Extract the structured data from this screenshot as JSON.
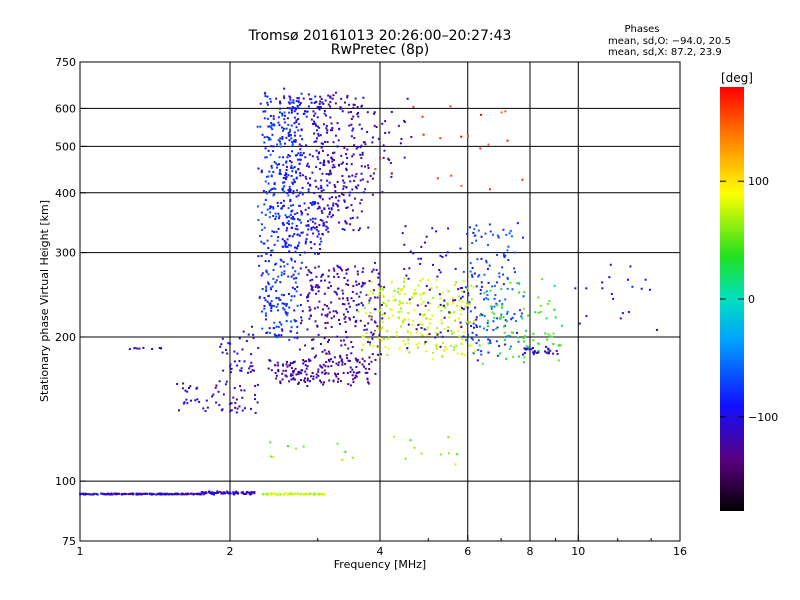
{
  "chart_data": {
    "type": "scatter",
    "title": "Tromsø 20161013 20:26:00–20:27:43",
    "subtitle": "RwPretec (8p)",
    "xlabel": "Frequency [MHz]",
    "ylabel": "Stationary phase Virtual Height [km]",
    "x_scale": "log",
    "y_scale": "log",
    "xlim": [
      1,
      16
    ],
    "ylim": [
      75,
      750
    ],
    "x_ticks": [
      1,
      2,
      4,
      6,
      8,
      10,
      16
    ],
    "x_tick_labels": [
      "1",
      "2",
      "4",
      "6",
      "8",
      "10",
      "16"
    ],
    "y_ticks": [
      75,
      100,
      200,
      300,
      400,
      500,
      600,
      750
    ],
    "y_tick_labels": [
      "75",
      "100",
      "200",
      "300",
      "400",
      "500",
      "600",
      "750"
    ],
    "grid": true,
    "grid_x": [
      2,
      4,
      6,
      8,
      10
    ],
    "grid_y": [
      100,
      200,
      300,
      400,
      500,
      600
    ],
    "phase_stats": {
      "heading": "Phases",
      "line_o": "mean, sd,O: −94.0, 20.5",
      "line_x": "mean, sd,X:  87.2, 23.9"
    },
    "colorbar": {
      "label": "[deg]",
      "range": [
        -180,
        180
      ],
      "ticks": [
        100,
        0,
        -100
      ],
      "tick_labels": [
        "100",
        "0",
        "−100"
      ]
    },
    "traces": [
      {
        "from_f": 1.0,
        "to_f": 1.75,
        "from_h": 94,
        "to_h": 94,
        "phase": -110,
        "count": 160,
        "jitter": 0.005
      },
      {
        "from_f": 1.75,
        "to_f": 2.25,
        "from_h": 94,
        "to_h": 95,
        "phase": -108,
        "count": 80,
        "jitter": 0.006
      },
      {
        "from_f": 2.33,
        "to_f": 3.1,
        "from_h": 94,
        "to_h": 94,
        "phase": 75,
        "count": 60,
        "jitter": 0.006
      },
      {
        "from_f": 1.55,
        "to_f": 2.1,
        "from_h": 140,
        "to_h": 160,
        "phase": -112,
        "count": 40,
        "jitter": 0.02
      },
      {
        "from_f": 1.9,
        "to_f": 2.3,
        "from_h": 140,
        "to_h": 210,
        "phase": -108,
        "count": 60,
        "jitter": 0.025
      },
      {
        "from_f": 2.3,
        "to_f": 2.75,
        "from_h": 200,
        "to_h": 640,
        "phase": -80,
        "count": 400,
        "jitter": 0.04
      },
      {
        "from_f": 2.55,
        "to_f": 3.05,
        "from_h": 300,
        "to_h": 650,
        "phase": -95,
        "count": 240,
        "jitter": 0.045
      },
      {
        "from_f": 3.0,
        "to_f": 3.7,
        "from_h": 330,
        "to_h": 640,
        "phase": -115,
        "count": 240,
        "jitter": 0.05
      },
      {
        "from_f": 3.7,
        "to_f": 4.5,
        "from_h": 400,
        "to_h": 640,
        "phase": -120,
        "count": 40,
        "jitter": 0.06
      },
      {
        "from_f": 2.4,
        "to_f": 3.9,
        "from_h": 160,
        "to_h": 180,
        "phase": -125,
        "count": 160,
        "jitter": 0.03
      },
      {
        "from_f": 2.8,
        "to_f": 4.0,
        "from_h": 180,
        "to_h": 280,
        "phase": -118,
        "count": 240,
        "jitter": 0.06
      },
      {
        "from_f": 3.7,
        "to_f": 6.2,
        "from_h": 185,
        "to_h": 260,
        "phase": 78,
        "count": 240,
        "jitter": 0.06
      },
      {
        "from_f": 4.5,
        "to_f": 6.5,
        "from_h": 190,
        "to_h": 340,
        "phase": -110,
        "count": 80,
        "jitter": 0.08
      },
      {
        "from_f": 6.0,
        "to_f": 7.6,
        "from_h": 180,
        "to_h": 340,
        "phase": -70,
        "count": 140,
        "jitter": 0.07
      },
      {
        "from_f": 6.3,
        "to_f": 9.2,
        "from_h": 180,
        "to_h": 260,
        "phase": 40,
        "count": 80,
        "jitter": 0.07
      },
      {
        "from_f": 7.6,
        "to_f": 9.2,
        "from_h": 185,
        "to_h": 190,
        "phase": -112,
        "count": 30,
        "jitter": 0.02
      },
      {
        "from_f": 10.0,
        "to_f": 14.5,
        "from_h": 200,
        "to_h": 290,
        "phase": -100,
        "count": 20,
        "jitter": 0.05
      },
      {
        "from_f": 1.25,
        "to_f": 1.55,
        "from_h": 189,
        "to_h": 189,
        "phase": -110,
        "count": 10,
        "jitter": 0.01
      },
      {
        "from_f": 2.3,
        "to_f": 6.0,
        "from_h": 110,
        "to_h": 125,
        "phase": 60,
        "count": 20,
        "jitter": 0.06
      },
      {
        "from_f": 4.0,
        "to_f": 8.0,
        "from_h": 400,
        "to_h": 640,
        "phase": 160,
        "count": 20,
        "jitter": 0.08
      }
    ]
  }
}
